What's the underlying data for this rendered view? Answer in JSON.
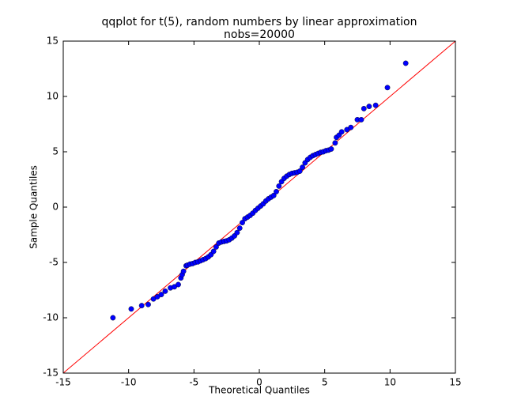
{
  "chart_data": {
    "type": "scatter",
    "title": "qqplot for t(5), random numbers by linear approximation",
    "subtitle": "nobs=20000",
    "xlabel": "Theoretical Quantiles",
    "ylabel": "Sample Quantiles",
    "xlim": [
      -15,
      15
    ],
    "ylim": [
      -15,
      15
    ],
    "xticks": [
      -15,
      -10,
      -5,
      0,
      5,
      10,
      15
    ],
    "yticks": [
      -15,
      -10,
      -5,
      0,
      5,
      10,
      15
    ],
    "color": "#0000ff",
    "reference_line": {
      "x": [
        -15,
        15
      ],
      "y": [
        -15,
        15
      ],
      "color": "#ff0000"
    },
    "x": [
      -11.2,
      -9.8,
      -9.0,
      -8.5,
      -8.1,
      -7.8,
      -7.5,
      -7.2,
      -6.8,
      -6.5,
      -6.2,
      -6.0,
      -5.9,
      -5.8,
      -5.6,
      -5.5,
      -5.3,
      -5.1,
      -4.9,
      -4.7,
      -4.5,
      -4.3,
      -4.1,
      -3.9,
      -3.7,
      -3.5,
      -3.3,
      -3.1,
      -2.9,
      -2.7,
      -2.5,
      -2.3,
      -2.1,
      -1.9,
      -1.7,
      -1.5,
      -1.3,
      -1.1,
      -0.9,
      -0.7,
      -0.5,
      -0.3,
      -0.1,
      0.1,
      0.3,
      0.5,
      0.7,
      0.9,
      1.1,
      1.3,
      1.5,
      1.7,
      1.9,
      2.1,
      2.3,
      2.5,
      2.7,
      2.9,
      3.1,
      3.3,
      3.5,
      3.7,
      3.9,
      4.1,
      4.3,
      4.5,
      4.7,
      4.9,
      5.1,
      5.3,
      5.5,
      5.8,
      5.9,
      6.1,
      6.3,
      6.7,
      7.0,
      7.5,
      7.8,
      8.0,
      8.4,
      8.9,
      9.8,
      11.2
    ],
    "y": [
      -10.0,
      -9.2,
      -8.9,
      -8.8,
      -8.3,
      -8.1,
      -7.9,
      -7.6,
      -7.3,
      -7.2,
      -7.0,
      -6.4,
      -6.1,
      -5.8,
      -5.3,
      -5.25,
      -5.15,
      -5.1,
      -5.0,
      -4.95,
      -4.85,
      -4.75,
      -4.65,
      -4.5,
      -4.3,
      -4.0,
      -3.6,
      -3.25,
      -3.15,
      -3.1,
      -3.05,
      -2.95,
      -2.8,
      -2.6,
      -2.3,
      -1.9,
      -1.4,
      -1.05,
      -0.9,
      -0.75,
      -0.55,
      -0.3,
      -0.1,
      0.1,
      0.3,
      0.55,
      0.75,
      0.9,
      1.05,
      1.4,
      1.9,
      2.3,
      2.6,
      2.8,
      2.95,
      3.05,
      3.1,
      3.15,
      3.25,
      3.6,
      4.0,
      4.3,
      4.5,
      4.65,
      4.75,
      4.85,
      4.95,
      5.0,
      5.1,
      5.15,
      5.25,
      5.8,
      6.3,
      6.5,
      6.8,
      7.0,
      7.2,
      7.9,
      7.9,
      8.9,
      9.1,
      9.2,
      10.8,
      13.0
    ]
  }
}
